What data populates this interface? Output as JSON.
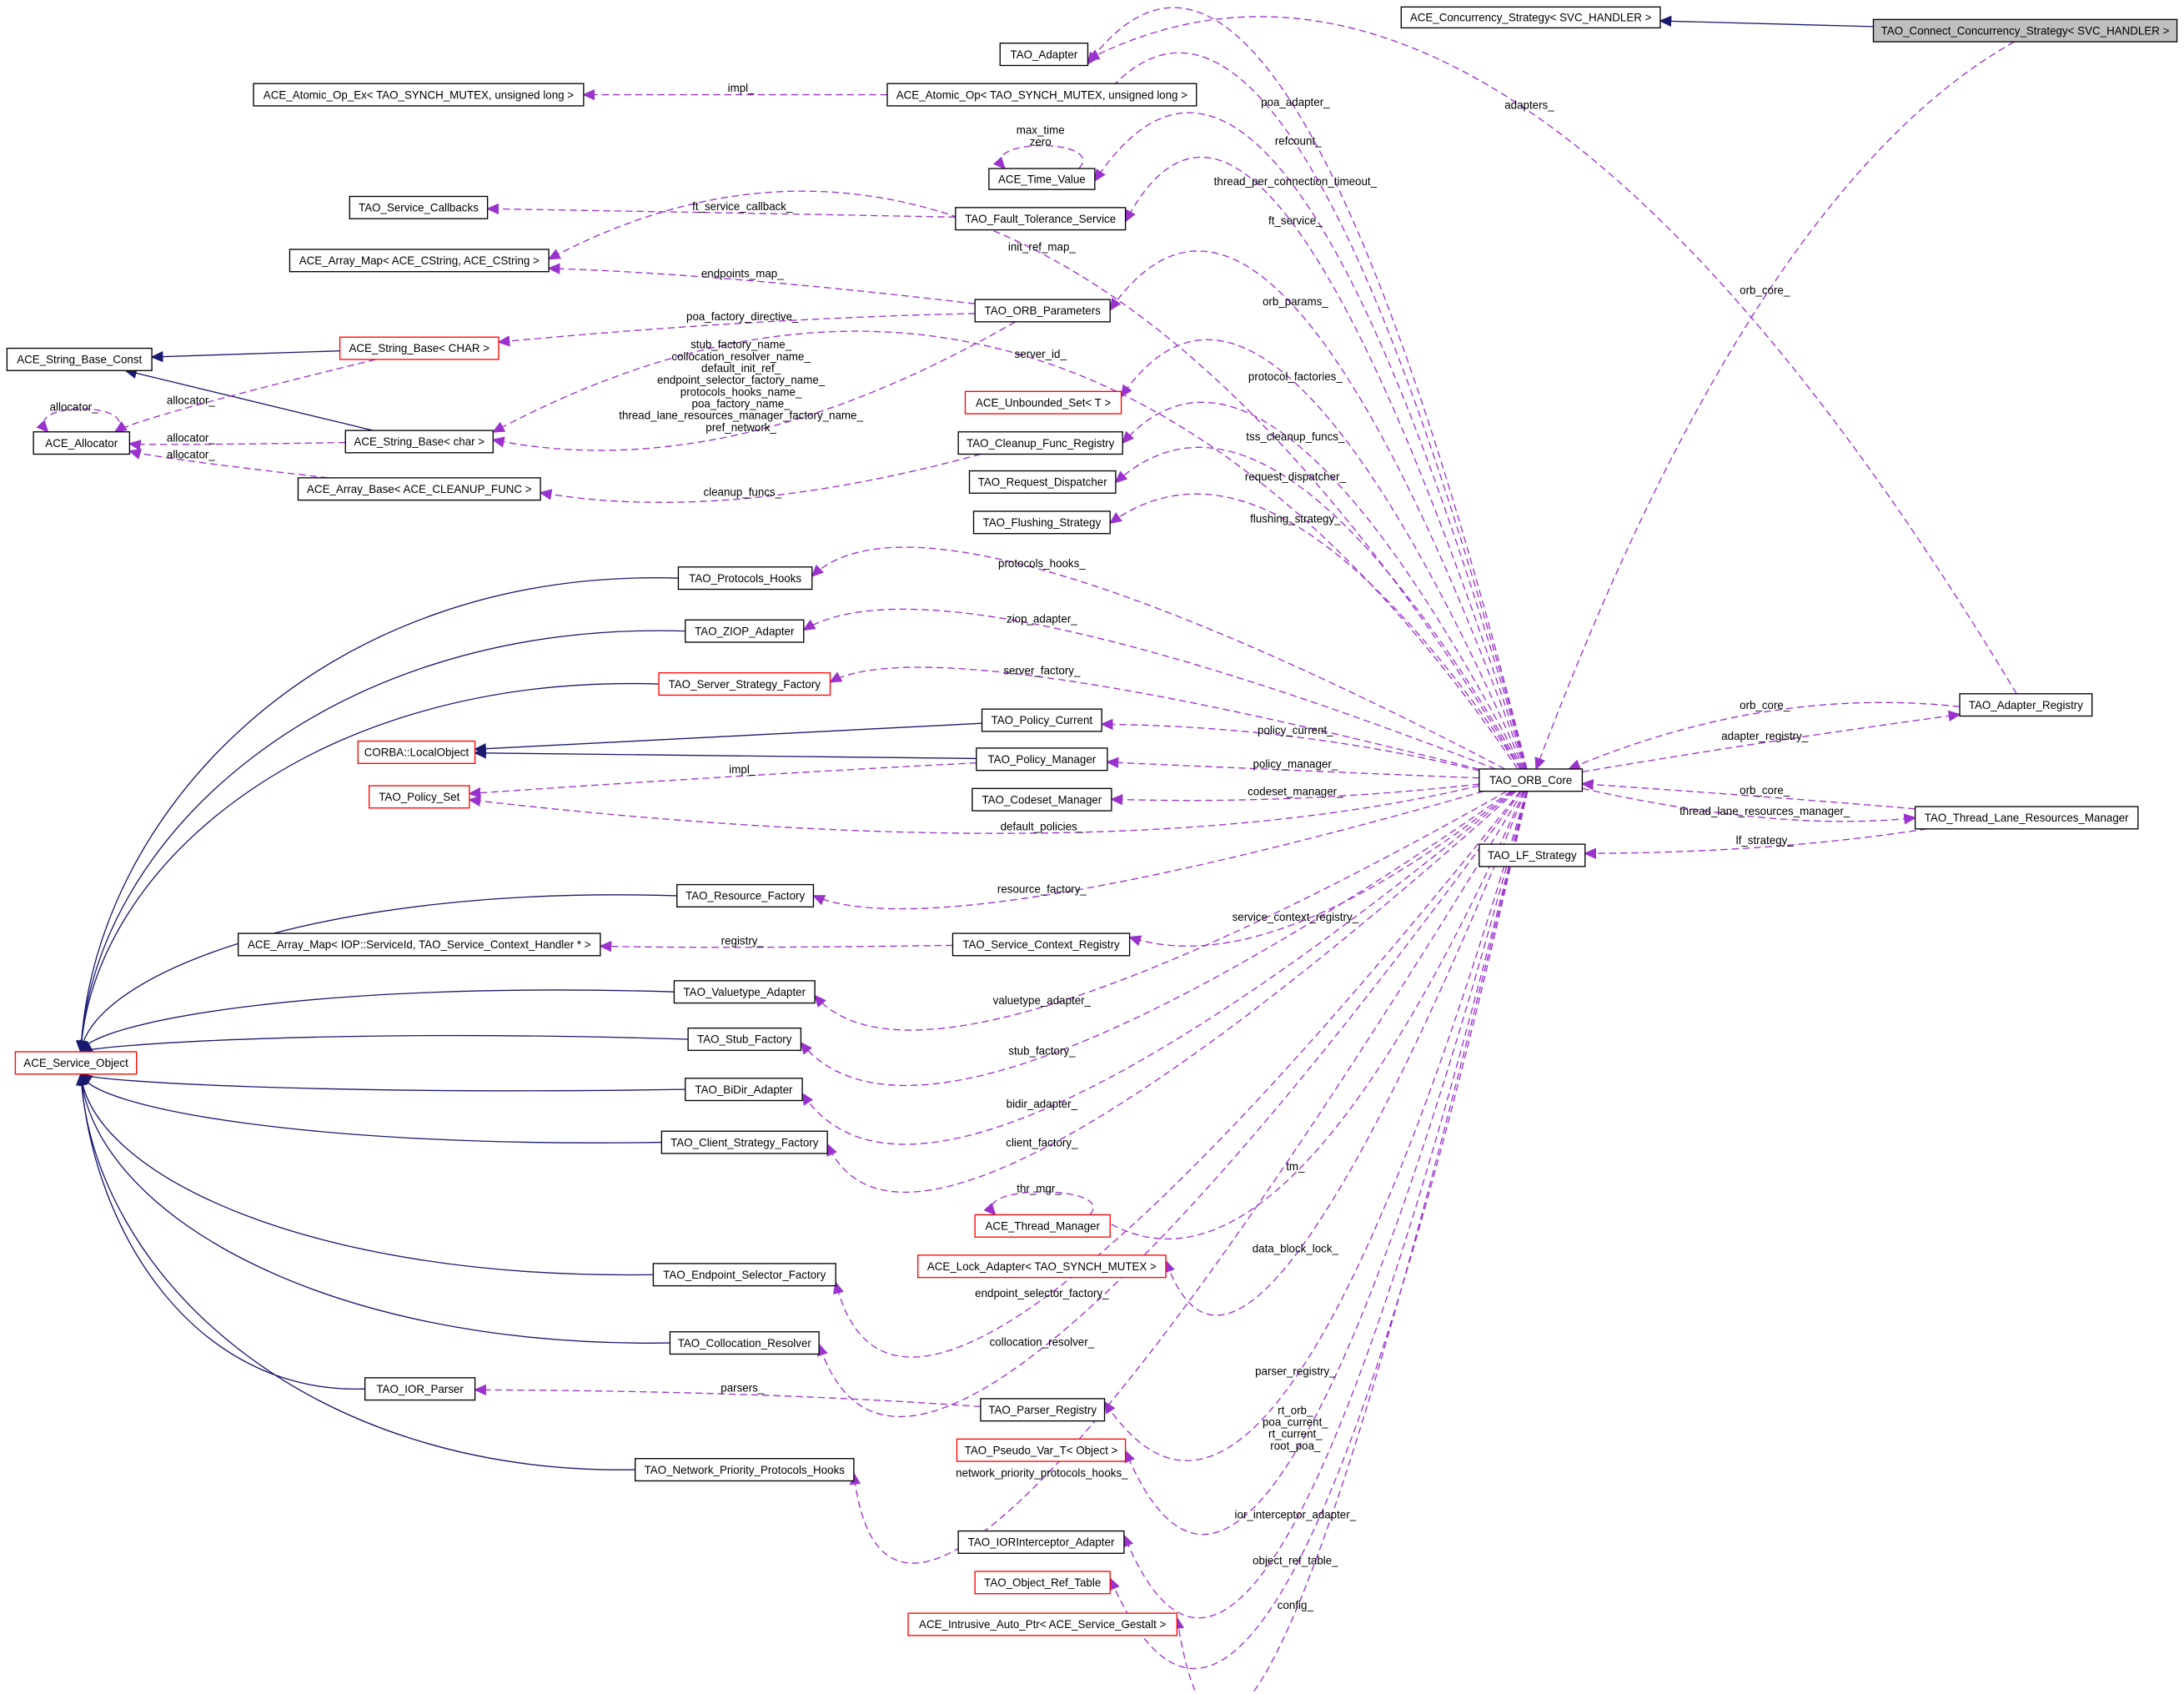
{
  "colors": {
    "usage_edge": "#9a32cd",
    "inheritance_edge": "#191970",
    "node_border": "#000000",
    "node_border_incomplete": "#ff0000",
    "focus_fill": "#bfbfbf",
    "background": "#ffffff"
  },
  "nodes": [
    {
      "id": "conc",
      "label": "ACE_Concurrency_Strategy< SVC_HANDLER >",
      "border": "black"
    },
    {
      "id": "connect",
      "label": "TAO_Connect_Concurrency_Strategy< SVC_HANDLER >",
      "border": "black",
      "focus": true
    },
    {
      "id": "adapter",
      "label": "TAO_Adapter",
      "border": "black"
    },
    {
      "id": "atomicEx",
      "label": "ACE_Atomic_Op_Ex< TAO_SYNCH_MUTEX, unsigned long >",
      "border": "black"
    },
    {
      "id": "atomic",
      "label": "ACE_Atomic_Op< TAO_SYNCH_MUTEX, unsigned long >",
      "border": "black"
    },
    {
      "id": "time",
      "label": "ACE_Time_Value",
      "border": "black"
    },
    {
      "id": "svccb",
      "label": "TAO_Service_Callbacks",
      "border": "black"
    },
    {
      "id": "ft",
      "label": "TAO_Fault_Tolerance_Service",
      "border": "black"
    },
    {
      "id": "amap",
      "label": "ACE_Array_Map< ACE_CString, ACE_CString >",
      "border": "black"
    },
    {
      "id": "params",
      "label": "TAO_ORB_Parameters",
      "border": "black"
    },
    {
      "id": "sbconst",
      "label": "ACE_String_Base_Const",
      "border": "black"
    },
    {
      "id": "sbCHAR",
      "label": "ACE_String_Base< CHAR >",
      "border": "red"
    },
    {
      "id": "uset",
      "label": "ACE_Unbounded_Set< T >",
      "border": "red"
    },
    {
      "id": "alloc",
      "label": "ACE_Allocator",
      "border": "black"
    },
    {
      "id": "sbchar",
      "label": "ACE_String_Base< char >",
      "border": "black"
    },
    {
      "id": "cleanup",
      "label": "TAO_Cleanup_Func_Registry",
      "border": "black"
    },
    {
      "id": "abase",
      "label": "ACE_Array_Base< ACE_CLEANUP_FUNC >",
      "border": "black"
    },
    {
      "id": "reqd",
      "label": "TAO_Request_Dispatcher",
      "border": "black"
    },
    {
      "id": "flush",
      "label": "TAO_Flushing_Strategy",
      "border": "black"
    },
    {
      "id": "phooks",
      "label": "TAO_Protocols_Hooks",
      "border": "black"
    },
    {
      "id": "ziop",
      "label": "TAO_ZIOP_Adapter",
      "border": "black"
    },
    {
      "id": "ssf",
      "label": "TAO_Server_Strategy_Factory",
      "border": "red"
    },
    {
      "id": "pcur",
      "label": "TAO_Policy_Current",
      "border": "black"
    },
    {
      "id": "lobj",
      "label": "CORBA::LocalObject",
      "border": "red"
    },
    {
      "id": "pman",
      "label": "TAO_Policy_Manager",
      "border": "black"
    },
    {
      "id": "pset",
      "label": "TAO_Policy_Set",
      "border": "red"
    },
    {
      "id": "codeset",
      "label": "TAO_Codeset_Manager",
      "border": "black"
    },
    {
      "id": "orb",
      "label": "TAO_ORB_Core",
      "border": "black"
    },
    {
      "id": "areg",
      "label": "TAO_Adapter_Registry",
      "border": "black"
    },
    {
      "id": "tlrm",
      "label": "TAO_Thread_Lane_Resources_Manager",
      "border": "black"
    },
    {
      "id": "lf",
      "label": "TAO_LF_Strategy",
      "border": "black"
    },
    {
      "id": "rf",
      "label": "TAO_Resource_Factory",
      "border": "black"
    },
    {
      "id": "amapiop",
      "label": "ACE_Array_Map< IOP::ServiceId, TAO_Service_Context_Handler * >",
      "border": "black"
    },
    {
      "id": "scr",
      "label": "TAO_Service_Context_Registry",
      "border": "black"
    },
    {
      "id": "vta",
      "label": "TAO_Valuetype_Adapter",
      "border": "black"
    },
    {
      "id": "so",
      "label": "ACE_Service_Object",
      "border": "red"
    },
    {
      "id": "stub",
      "label": "TAO_Stub_Factory",
      "border": "black"
    },
    {
      "id": "bidir",
      "label": "TAO_BiDir_Adapter",
      "border": "black"
    },
    {
      "id": "csf",
      "label": "TAO_Client_Strategy_Factory",
      "border": "black"
    },
    {
      "id": "thr",
      "label": "ACE_Thread_Manager",
      "border": "red"
    },
    {
      "id": "lock",
      "label": "ACE_Lock_Adapter< TAO_SYNCH_MUTEX >",
      "border": "red"
    },
    {
      "id": "esf",
      "label": "TAO_Endpoint_Selector_Factory",
      "border": "black"
    },
    {
      "id": "coll",
      "label": "TAO_Collocation_Resolver",
      "border": "black"
    },
    {
      "id": "ior",
      "label": "TAO_IOR_Parser",
      "border": "black"
    },
    {
      "id": "preg",
      "label": "TAO_Parser_Registry",
      "border": "black"
    },
    {
      "id": "pvar",
      "label": "TAO_Pseudo_Var_T< Object >",
      "border": "red"
    },
    {
      "id": "nphooks",
      "label": "TAO_Network_Priority_Protocols_Hooks",
      "border": "black"
    },
    {
      "id": "iori",
      "label": "TAO_IORInterceptor_Adapter",
      "border": "black"
    },
    {
      "id": "ort",
      "label": "TAO_Object_Ref_Table",
      "border": "red"
    },
    {
      "id": "iap",
      "label": "ACE_Intrusive_Auto_Ptr< ACE_Service_Gestalt >",
      "border": "red"
    }
  ],
  "edges": [
    {
      "from": "connect",
      "to": "conc",
      "kind": "inherit",
      "labels": []
    },
    {
      "from": "sbCHAR",
      "to": "sbconst",
      "kind": "inherit",
      "labels": []
    },
    {
      "from": "sbchar",
      "to": "sbconst",
      "kind": "inherit",
      "labels": []
    },
    {
      "from": "pcur",
      "to": "lobj",
      "kind": "inherit",
      "labels": []
    },
    {
      "from": "pman",
      "to": "lobj",
      "kind": "inherit",
      "labels": []
    },
    {
      "from": "phooks",
      "to": "so",
      "kind": "inherit",
      "labels": []
    },
    {
      "from": "ziop",
      "to": "so",
      "kind": "inherit",
      "labels": []
    },
    {
      "from": "ssf",
      "to": "so",
      "kind": "inherit",
      "labels": []
    },
    {
      "from": "rf",
      "to": "so",
      "kind": "inherit",
      "labels": []
    },
    {
      "from": "vta",
      "to": "so",
      "kind": "inherit",
      "labels": []
    },
    {
      "from": "stub",
      "to": "so",
      "kind": "inherit",
      "labels": []
    },
    {
      "from": "bidir",
      "to": "so",
      "kind": "inherit",
      "labels": []
    },
    {
      "from": "csf",
      "to": "so",
      "kind": "inherit",
      "labels": []
    },
    {
      "from": "esf",
      "to": "so",
      "kind": "inherit",
      "labels": []
    },
    {
      "from": "coll",
      "to": "so",
      "kind": "inherit",
      "labels": []
    },
    {
      "from": "ior",
      "to": "so",
      "kind": "inherit",
      "labels": []
    },
    {
      "from": "nphooks",
      "to": "so",
      "kind": "inherit",
      "labels": []
    },
    {
      "from": "atomic",
      "to": "atomicEx",
      "kind": "use",
      "labels": [
        "impl_"
      ]
    },
    {
      "from": "orb",
      "to": "adapter",
      "kind": "use",
      "labels": [
        "poa_adapter_"
      ]
    },
    {
      "from": "orb",
      "to": "atomic",
      "kind": "use",
      "labels": [
        "refcount_"
      ]
    },
    {
      "from": "time",
      "to": "time",
      "kind": "self",
      "labels": [
        "max_time",
        "zero"
      ]
    },
    {
      "from": "orb",
      "to": "time",
      "kind": "use",
      "labels": [
        "thread_per_connection_timeout_"
      ]
    },
    {
      "from": "ft",
      "to": "svccb",
      "kind": "use",
      "labels": [
        "ft_service_callback_"
      ]
    },
    {
      "from": "orb",
      "to": "ft",
      "kind": "use",
      "labels": [
        "ft_service_"
      ]
    },
    {
      "from": "orb",
      "to": "amap",
      "kind": "use",
      "labels": [
        "init_ref_map_"
      ]
    },
    {
      "from": "params",
      "to": "amap",
      "kind": "use",
      "labels": [
        "endpoints_map_"
      ]
    },
    {
      "from": "orb",
      "to": "params",
      "kind": "use",
      "labels": [
        "orb_params_"
      ]
    },
    {
      "from": "params",
      "to": "sbCHAR",
      "kind": "use",
      "labels": [
        "poa_factory_directive_"
      ]
    },
    {
      "from": "params",
      "to": "sbchar",
      "kind": "use",
      "labels": [
        "stub_factory_name_",
        "collocation_resolver_name_",
        "default_init_ref_",
        "endpoint_selector_factory_name_",
        "protocols_hooks_name_",
        "poa_factory_name_",
        "thread_lane_resources_manager_factory_name_",
        "pref_network_"
      ]
    },
    {
      "from": "orb",
      "to": "sbchar",
      "kind": "use",
      "labels": [
        "server_id_"
      ]
    },
    {
      "from": "sbCHAR",
      "to": "alloc",
      "kind": "use",
      "labels": [
        "allocator_"
      ]
    },
    {
      "from": "alloc",
      "to": "alloc",
      "kind": "self",
      "labels": [
        "allocator_"
      ]
    },
    {
      "from": "sbchar",
      "to": "alloc",
      "kind": "use",
      "labels": [
        "allocator_"
      ]
    },
    {
      "from": "abase",
      "to": "alloc",
      "kind": "use",
      "labels": [
        "allocator_"
      ]
    },
    {
      "from": "orb",
      "to": "uset",
      "kind": "use",
      "labels": [
        "protocol_factories_"
      ]
    },
    {
      "from": "orb",
      "to": "cleanup",
      "kind": "use",
      "labels": [
        "tss_cleanup_funcs_"
      ]
    },
    {
      "from": "cleanup",
      "to": "abase",
      "kind": "use",
      "labels": [
        "cleanup_funcs_"
      ]
    },
    {
      "from": "orb",
      "to": "reqd",
      "kind": "use",
      "labels": [
        "request_dispatcher_"
      ]
    },
    {
      "from": "orb",
      "to": "flush",
      "kind": "use",
      "labels": [
        "flushing_strategy_"
      ]
    },
    {
      "from": "orb",
      "to": "phooks",
      "kind": "use",
      "labels": [
        "protocols_hooks_"
      ]
    },
    {
      "from": "orb",
      "to": "ziop",
      "kind": "use",
      "labels": [
        "ziop_adapter_"
      ]
    },
    {
      "from": "orb",
      "to": "ssf",
      "kind": "use",
      "labels": [
        "server_factory_"
      ]
    },
    {
      "from": "orb",
      "to": "pcur",
      "kind": "use",
      "labels": [
        "policy_current_"
      ]
    },
    {
      "from": "orb",
      "to": "pman",
      "kind": "use",
      "labels": [
        "policy_manager_"
      ]
    },
    {
      "from": "pman",
      "to": "pset",
      "kind": "use",
      "labels": [
        "impl_"
      ]
    },
    {
      "from": "orb",
      "to": "codeset",
      "kind": "use",
      "labels": [
        "codeset_manager_"
      ]
    },
    {
      "from": "orb",
      "to": "pset",
      "kind": "use",
      "labels": [
        "default_policies_"
      ]
    },
    {
      "from": "connect",
      "to": "orb",
      "kind": "use",
      "labels": [
        "orb_core_"
      ]
    },
    {
      "from": "areg",
      "to": "adapter",
      "kind": "use",
      "labels": [
        "adapters_"
      ]
    },
    {
      "from": "areg",
      "to": "orb",
      "kind": "use",
      "labels": [
        "orb_core_"
      ]
    },
    {
      "from": "orb",
      "to": "areg",
      "kind": "use",
      "labels": [
        "adapter_registry_"
      ]
    },
    {
      "from": "tlrm",
      "to": "orb",
      "kind": "use",
      "labels": [
        "orb_core_"
      ]
    },
    {
      "from": "orb",
      "to": "tlrm",
      "kind": "use",
      "labels": [
        "thread_lane_resources_manager_"
      ]
    },
    {
      "from": "tlrm",
      "to": "lf",
      "kind": "use",
      "labels": [
        "lf_strategy_"
      ]
    },
    {
      "from": "orb",
      "to": "rf",
      "kind": "use",
      "labels": [
        "resource_factory_"
      ]
    },
    {
      "from": "orb",
      "to": "scr",
      "kind": "use",
      "labels": [
        "service_context_registry_"
      ]
    },
    {
      "from": "scr",
      "to": "amapiop",
      "kind": "use",
      "labels": [
        "registry_"
      ]
    },
    {
      "from": "orb",
      "to": "vta",
      "kind": "use",
      "labels": [
        "valuetype_adapter_"
      ]
    },
    {
      "from": "orb",
      "to": "stub",
      "kind": "use",
      "labels": [
        "stub_factory_"
      ]
    },
    {
      "from": "orb",
      "to": "bidir",
      "kind": "use",
      "labels": [
        "bidir_adapter_"
      ]
    },
    {
      "from": "orb",
      "to": "csf",
      "kind": "use",
      "labels": [
        "client_factory_"
      ]
    },
    {
      "from": "orb",
      "to": "thr",
      "kind": "use",
      "labels": [
        "tm_"
      ]
    },
    {
      "from": "thr",
      "to": "thr",
      "kind": "self",
      "labels": [
        "thr_mgr_"
      ]
    },
    {
      "from": "orb",
      "to": "lock",
      "kind": "use",
      "labels": [
        "data_block_lock_"
      ]
    },
    {
      "from": "orb",
      "to": "esf",
      "kind": "use",
      "labels": [
        "endpoint_selector_factory_"
      ]
    },
    {
      "from": "orb",
      "to": "coll",
      "kind": "use",
      "labels": [
        "collocation_resolver_"
      ]
    },
    {
      "from": "preg",
      "to": "ior",
      "kind": "use",
      "labels": [
        "parsers_"
      ]
    },
    {
      "from": "orb",
      "to": "preg",
      "kind": "use",
      "labels": [
        "parser_registry_"
      ]
    },
    {
      "from": "orb",
      "to": "pvar",
      "kind": "use",
      "labels": [
        "rt_orb_",
        "poa_current_",
        "rt_current_",
        "root_poa_"
      ]
    },
    {
      "from": "orb",
      "to": "nphooks",
      "kind": "use",
      "labels": [
        "network_priority_protocols_hooks_"
      ]
    },
    {
      "from": "orb",
      "to": "iori",
      "kind": "use",
      "labels": [
        "ior_interceptor_adapter_"
      ]
    },
    {
      "from": "orb",
      "to": "ort",
      "kind": "use",
      "labels": [
        "object_ref_table_"
      ]
    },
    {
      "from": "orb",
      "to": "iap",
      "kind": "use",
      "labels": [
        "config_"
      ]
    }
  ]
}
